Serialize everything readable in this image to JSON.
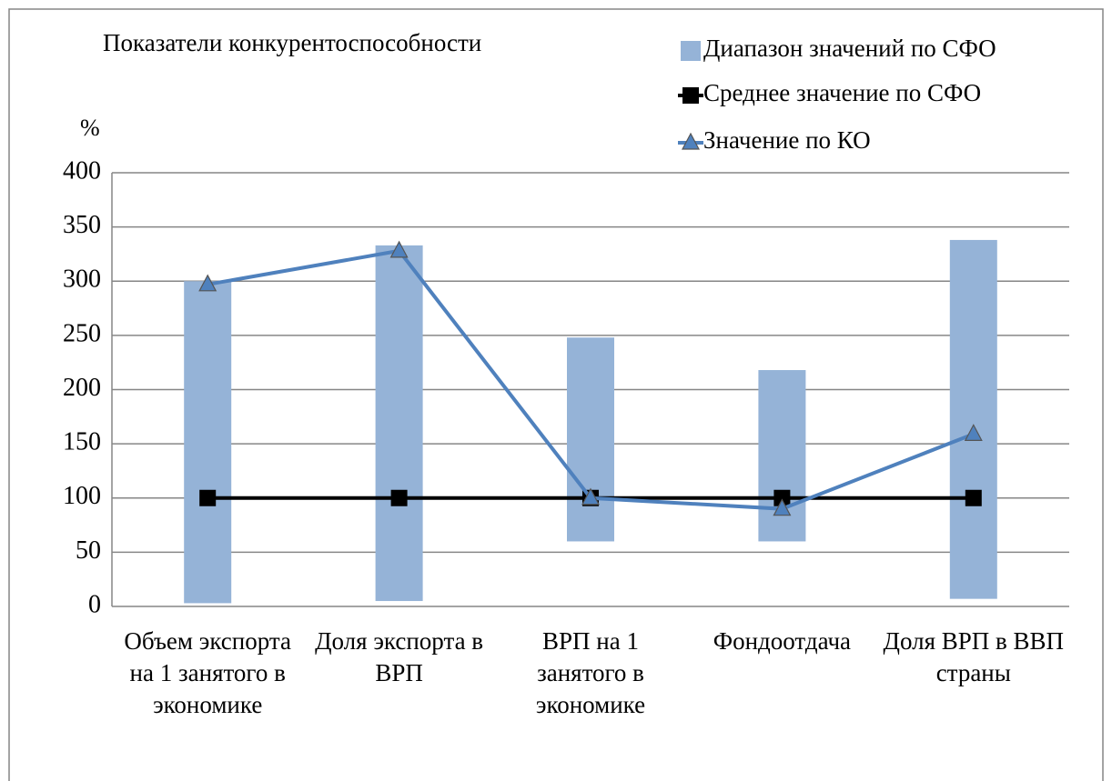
{
  "chart_data": {
    "type": "range-bar-line",
    "title": "Показатели конкурентоспособности",
    "y_label": "%",
    "categories": [
      "Объем экспорта на 1 занятого в экономике",
      "Доля экспорта в ВРП",
      "ВРП на 1 занятого в экономике",
      "Фондоотдача",
      "Доля ВРП в ВВП страны"
    ],
    "series": [
      {
        "name": "Диапазон значений по СФО",
        "type": "range",
        "color": "#95b3d7",
        "low": [
          3,
          5,
          60,
          60,
          7
        ],
        "high": [
          300,
          333,
          248,
          218,
          338
        ]
      },
      {
        "name": "Среднее значение по СФО",
        "type": "line",
        "marker": "square",
        "color": "#000000",
        "values": [
          100,
          100,
          100,
          100,
          100
        ]
      },
      {
        "name": "Значение по КО",
        "type": "line",
        "marker": "triangle",
        "color": "#4f81bd",
        "values": [
          297,
          328,
          100,
          90,
          159
        ]
      }
    ],
    "ylim": [
      0,
      400
    ],
    "yticks": [
      0,
      50,
      100,
      150,
      200,
      250,
      300,
      350,
      400
    ],
    "grid": true,
    "legend": "top-right"
  }
}
